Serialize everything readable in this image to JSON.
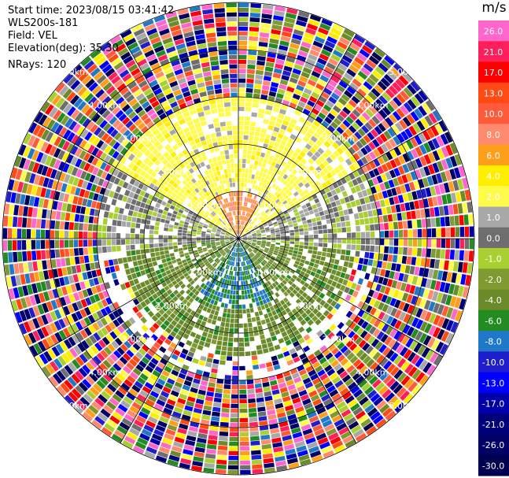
{
  "info": {
    "start_time": "Start time: 2023/08/15 03:41:42",
    "site": "WLS200s-181",
    "field": "Field: VEL",
    "elevation": "Elevation(deg): 35.30",
    "nrays": "NRays: 120"
  },
  "colorbar": {
    "unit": "m/s",
    "bins": [
      {
        "label": "26.0",
        "color": "#ff66cc"
      },
      {
        "label": "21.0",
        "color": "#ff1f5a"
      },
      {
        "label": "17.0",
        "color": "#ff0000"
      },
      {
        "label": "13.0",
        "color": "#ff4a14"
      },
      {
        "label": "10.0",
        "color": "#ff5a3a"
      },
      {
        "label": "8.0",
        "color": "#ff8a6e"
      },
      {
        "label": "6.0",
        "color": "#ff9e1a"
      },
      {
        "label": "4.0",
        "color": "#ffee00"
      },
      {
        "label": "2.0",
        "color": "#fffb4a"
      },
      {
        "label": "1.0",
        "color": "#a8a8a8"
      },
      {
        "label": "0.0",
        "color": "#6e6e6e"
      },
      {
        "label": "-1.0",
        "color": "#a8d030"
      },
      {
        "label": "-2.0",
        "color": "#7e9a30"
      },
      {
        "label": "-4.0",
        "color": "#6b8a2a"
      },
      {
        "label": "-6.0",
        "color": "#228b22"
      },
      {
        "label": "-8.0",
        "color": "#1f78c8"
      },
      {
        "label": "-10.0",
        "color": "#1e1ecc"
      },
      {
        "label": "-13.0",
        "color": "#0000ff"
      },
      {
        "label": "-17.0",
        "color": "#0000aa"
      },
      {
        "label": "-21.0",
        "color": "#00007a"
      },
      {
        "label": "-26.0",
        "color": "#000066"
      },
      {
        "label": "-30.0",
        "color": "#000050"
      }
    ]
  },
  "chart_data": {
    "type": "ppi",
    "field": "VEL",
    "units": "m/s",
    "elevation_deg": 35.3,
    "nrays": 120,
    "range_rings_km": [
      1.0,
      2.0,
      3.0,
      4.0,
      5.0
    ],
    "range_ring_label": "0.00km",
    "range_ring_labels": [
      "1.00km",
      "2.00km",
      "3.00km",
      "4.00km",
      "5.00km"
    ],
    "max_range_km": 5.0,
    "azimuth_spokes_deg": [
      0,
      30,
      60,
      90,
      120,
      150,
      180,
      210,
      240,
      270,
      300,
      330
    ],
    "sectors": [
      {
        "az_from": 300,
        "az_to": 60,
        "range_km": [
          0,
          3.0
        ],
        "velocity": 3.0
      },
      {
        "az_from": 330,
        "az_to": 30,
        "range_km": [
          0,
          1.0
        ],
        "velocity": 8.0
      },
      {
        "az_from": 60,
        "az_to": 95,
        "range_km": [
          0,
          3.0
        ],
        "velocity": 0.5
      },
      {
        "az_from": 95,
        "az_to": 265,
        "range_km": [
          0,
          2.5
        ],
        "velocity": -3.0
      },
      {
        "az_from": 150,
        "az_to": 215,
        "range_km": [
          0,
          1.5
        ],
        "velocity": -6.0
      },
      {
        "az_from": 265,
        "az_to": 300,
        "range_km": [
          0,
          3.0
        ],
        "velocity": 0.5
      }
    ],
    "noise_beyond_km": 3.0
  }
}
